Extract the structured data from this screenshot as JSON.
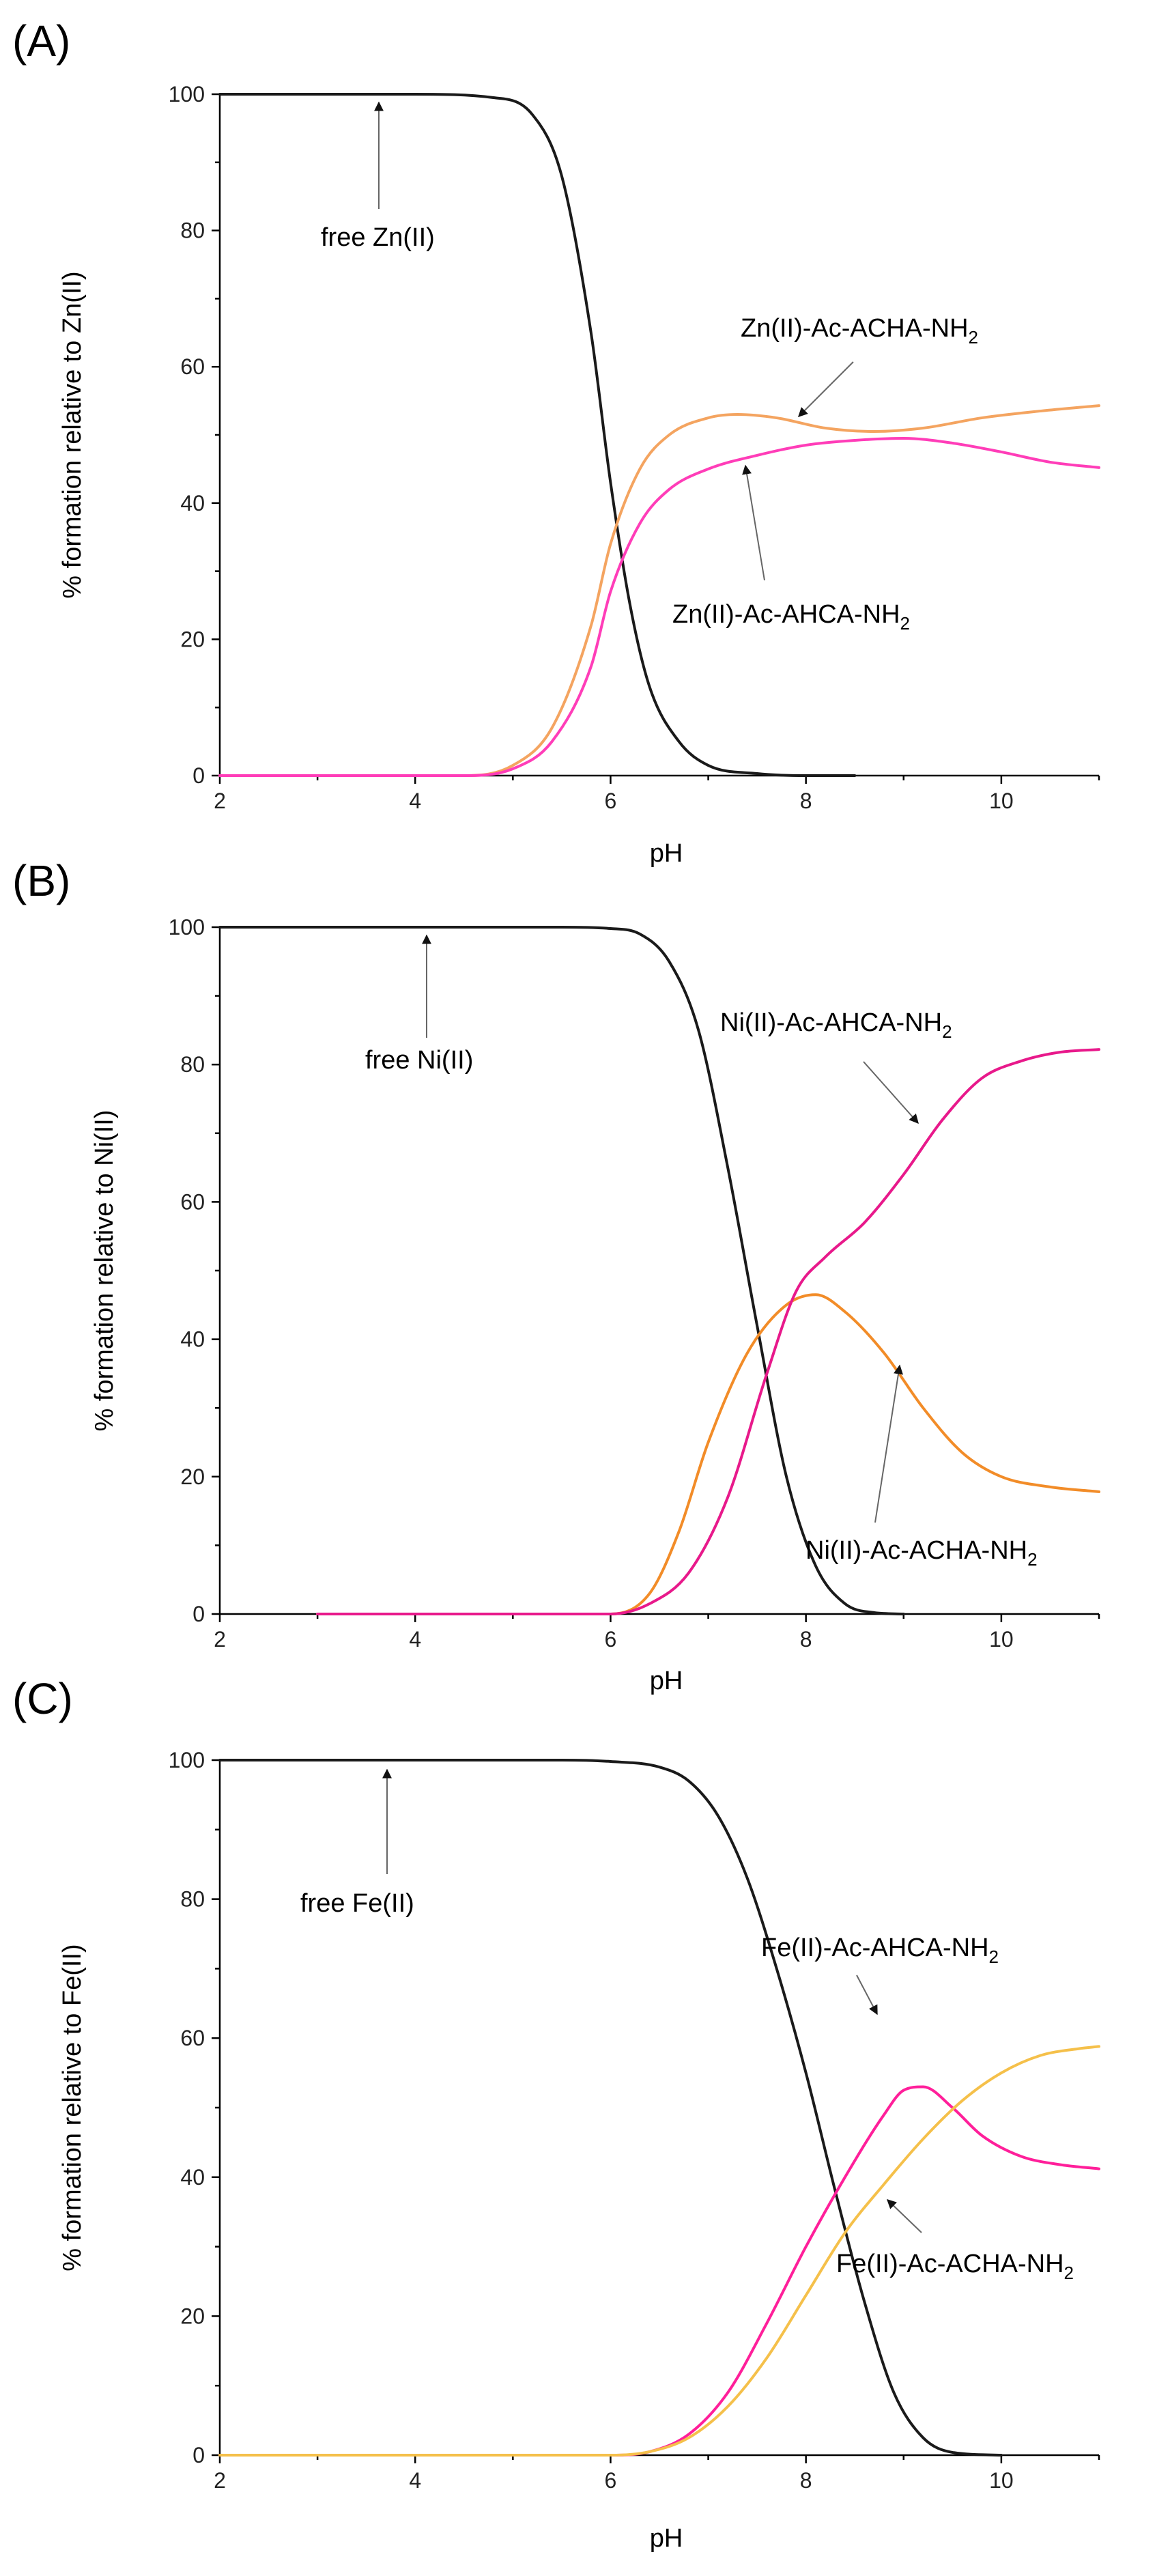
{
  "chart_data": [
    {
      "type": "line",
      "panel_label": "(A)",
      "xlabel": "pH",
      "ylabel": "% formation relative to Zn(II)",
      "xlim": [
        2,
        11
      ],
      "ylim": [
        0,
        100
      ],
      "xticks": [
        2,
        4,
        6,
        8,
        10
      ],
      "yticks": [
        0,
        20,
        40,
        60,
        80,
        100
      ],
      "series": [
        {
          "name": "free Zn(II)",
          "color": "#1a1a1a",
          "x": [
            2,
            4,
            4.8,
            5.2,
            5.5,
            5.8,
            6.0,
            6.2,
            6.4,
            6.7,
            7.0,
            7.5,
            8.0,
            8.5
          ],
          "y": [
            100,
            100,
            99.5,
            97,
            88,
            65,
            43,
            25,
            13,
            5,
            1.5,
            0.3,
            0,
            0
          ]
        },
        {
          "name": "Zn(II)-Ac-ACHA-NH2",
          "color": "#f4a460",
          "x": [
            2,
            4.5,
            5.0,
            5.4,
            5.8,
            6.0,
            6.3,
            6.6,
            7.0,
            7.3,
            7.7,
            8.2,
            8.7,
            9.2,
            9.8,
            10.4,
            11
          ],
          "y": [
            0,
            0,
            1.5,
            7,
            22,
            34,
            45,
            50,
            52.5,
            53,
            52.5,
            51,
            50.5,
            51,
            52.5,
            53.5,
            54.3
          ]
        },
        {
          "name": "Zn(II)-Ac-AHCA-NH2",
          "color": "#ff3db8",
          "x": [
            2,
            4.5,
            5.0,
            5.4,
            5.8,
            6.0,
            6.3,
            6.6,
            7.0,
            7.5,
            8.0,
            8.5,
            9.0,
            9.5,
            10.0,
            10.5,
            11
          ],
          "y": [
            0,
            0,
            1,
            5,
            16,
            27,
            37,
            42,
            45,
            47,
            48.5,
            49.2,
            49.5,
            48.8,
            47.5,
            46,
            45.2
          ]
        }
      ],
      "annotations": [
        {
          "text": "free Zn(II)",
          "target": "free Zn(II)"
        },
        {
          "text": "Zn(II)-Ac-ACHA-NH",
          "subscript": "2",
          "target": "Zn(II)-Ac-ACHA-NH2"
        },
        {
          "text": "Zn(II)-Ac-AHCA-NH",
          "subscript": "2",
          "target": "Zn(II)-Ac-AHCA-NH2"
        }
      ]
    },
    {
      "type": "line",
      "panel_label": "(B)",
      "xlabel": "pH",
      "ylabel": "% formation relative to Ni(II)",
      "xlim": [
        2,
        11
      ],
      "ylim": [
        0,
        100
      ],
      "xticks": [
        2,
        4,
        6,
        8,
        10
      ],
      "yticks": [
        0,
        20,
        40,
        60,
        80,
        100
      ],
      "series": [
        {
          "name": "free Ni(II)",
          "color": "#1a1a1a",
          "x": [
            2,
            5.5,
            6.0,
            6.3,
            6.6,
            6.9,
            7.2,
            7.5,
            7.8,
            8.1,
            8.4,
            8.7,
            9.0
          ],
          "y": [
            100,
            100,
            99.8,
            99,
            95,
            85,
            65,
            42,
            20,
            7,
            1.5,
            0.2,
            0
          ]
        },
        {
          "name": "Ni(II)-Ac-ACHA-NH2",
          "color": "#f28c28",
          "x": [
            3,
            6.0,
            6.4,
            6.7,
            7.0,
            7.4,
            7.8,
            8.1,
            8.4,
            8.8,
            9.2,
            9.6,
            10.0,
            10.5,
            11
          ],
          "y": [
            0,
            0,
            3,
            12,
            25,
            38,
            45,
            46.5,
            44,
            38,
            30,
            23.5,
            20,
            18.5,
            17.8
          ]
        },
        {
          "name": "Ni(II)-Ac-AHCA-NH2",
          "color": "#e8198b",
          "x": [
            3,
            6.0,
            6.4,
            6.8,
            7.2,
            7.6,
            7.9,
            8.2,
            8.6,
            9.0,
            9.4,
            9.8,
            10.2,
            10.6,
            11
          ],
          "y": [
            0,
            0,
            1.5,
            6,
            17,
            35,
            47,
            52,
            57,
            64,
            72,
            78,
            80.5,
            81.8,
            82.2
          ]
        }
      ],
      "annotations": [
        {
          "text": "free Ni(II)",
          "target": "free Ni(II)"
        },
        {
          "text": "Ni(II)-Ac-AHCA-NH",
          "subscript": "2",
          "target": "Ni(II)-Ac-AHCA-NH2"
        },
        {
          "text": "Ni(II)-Ac-ACHA-NH",
          "subscript": "2",
          "target": "Ni(II)-Ac-ACHA-NH2"
        }
      ]
    },
    {
      "type": "line",
      "panel_label": "(C)",
      "xlabel": "pH",
      "ylabel": "% formation relative to Fe(II)",
      "xlim": [
        2,
        11
      ],
      "ylim": [
        0,
        100
      ],
      "xticks": [
        2,
        4,
        6,
        8,
        10
      ],
      "yticks": [
        0,
        20,
        40,
        60,
        80,
        100
      ],
      "series": [
        {
          "name": "free Fe(II)",
          "color": "#1a1a1a",
          "x": [
            2,
            5.5,
            6.0,
            6.5,
            6.8,
            7.1,
            7.4,
            7.7,
            8.0,
            8.3,
            8.6,
            8.9,
            9.2,
            9.5,
            10.0
          ],
          "y": [
            100,
            100,
            99.8,
            99,
            97,
            92,
            83,
            70,
            55,
            38,
            22,
            9,
            2.5,
            0.4,
            0
          ]
        },
        {
          "name": "Fe(II)-Ac-AHCA-NH2",
          "color": "#ff1f9a",
          "x": [
            2,
            6.0,
            6.4,
            6.8,
            7.2,
            7.6,
            8.0,
            8.4,
            8.8,
            9.0,
            9.2,
            9.5,
            9.8,
            10.2,
            10.6,
            11
          ],
          "y": [
            0,
            0,
            0.5,
            3,
            9,
            19,
            30,
            40,
            49,
            52.5,
            53,
            50,
            46,
            43,
            41.8,
            41.2
          ]
        },
        {
          "name": "Fe(II)-Ac-ACHA-NH2",
          "color": "#f5c04a",
          "x": [
            2,
            6.0,
            6.4,
            6.8,
            7.2,
            7.6,
            8.0,
            8.4,
            8.8,
            9.2,
            9.6,
            10.0,
            10.4,
            10.8,
            11
          ],
          "y": [
            0,
            0,
            0.5,
            2.5,
            7,
            14,
            23,
            32,
            39,
            45.5,
            51,
            55,
            57.5,
            58.5,
            58.8
          ]
        }
      ],
      "annotations": [
        {
          "text": "free Fe(II)",
          "target": "free Fe(II)"
        },
        {
          "text": "Fe(II)-Ac-AHCA-NH",
          "subscript": "2",
          "target": "Fe(II)-Ac-AHCA-NH2"
        },
        {
          "text": "Fe(II)-Ac-ACHA-NH",
          "subscript": "2",
          "target": "Fe(II)-Ac-ACHA-NH2"
        }
      ]
    }
  ]
}
